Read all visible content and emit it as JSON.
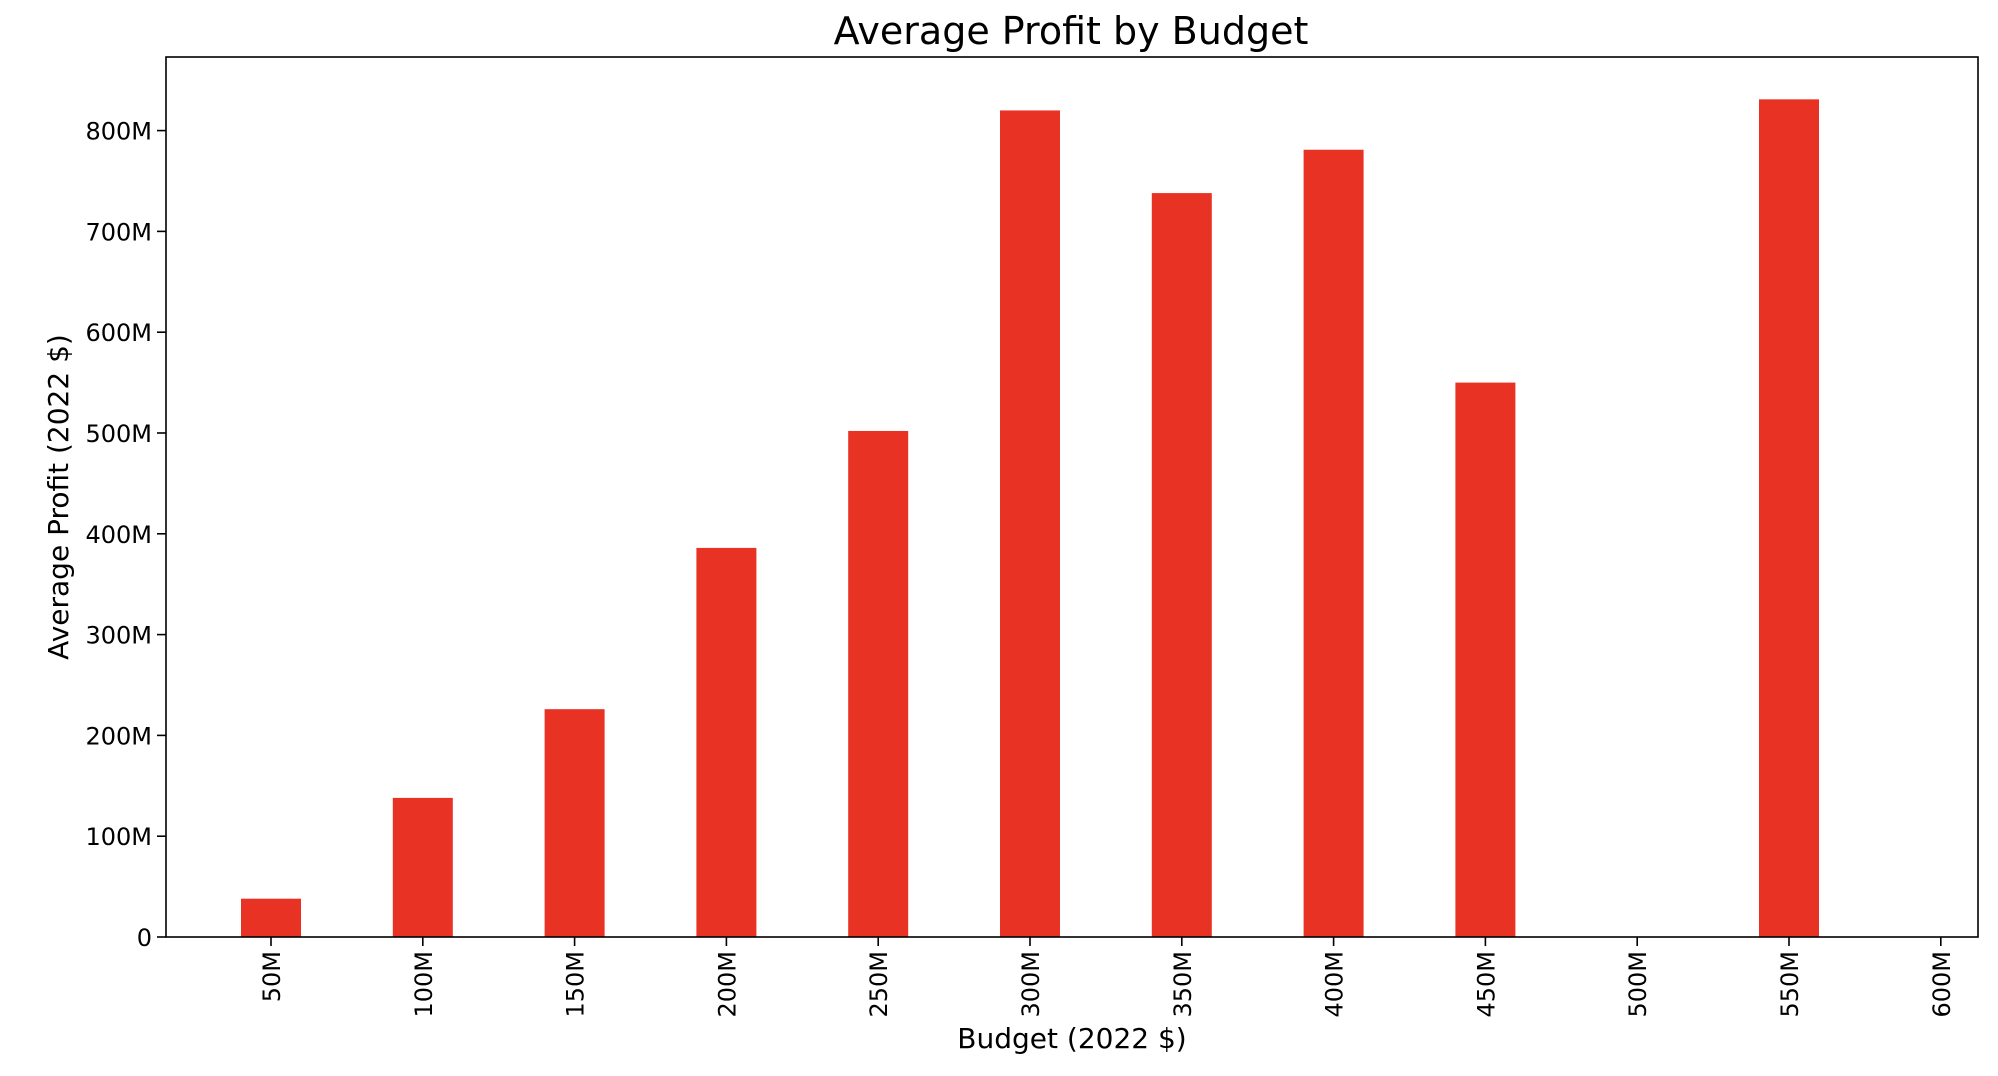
{
  "chart_data": {
    "type": "bar",
    "title": "Average Profit by Budget",
    "xlabel": "Budget (2022 $)",
    "ylabel": "Average Profit (2022 $)",
    "categories": [
      "50M",
      "100M",
      "150M",
      "200M",
      "250M",
      "300M",
      "350M",
      "400M",
      "450M",
      "500M",
      "550M",
      "600M"
    ],
    "values": [
      38,
      138,
      226,
      386,
      502,
      820,
      738,
      781,
      550,
      0,
      831,
      0
    ],
    "value_unit": "M",
    "y_ticks": [
      0,
      100,
      200,
      300,
      400,
      500,
      600,
      700,
      800
    ],
    "y_tick_labels": [
      "0",
      "100M",
      "200M",
      "300M",
      "400M",
      "500M",
      "600M",
      "700M",
      "800M"
    ],
    "ylim": [
      0,
      873
    ],
    "grid": false,
    "legend": "none",
    "bar_color": "#e83324"
  }
}
